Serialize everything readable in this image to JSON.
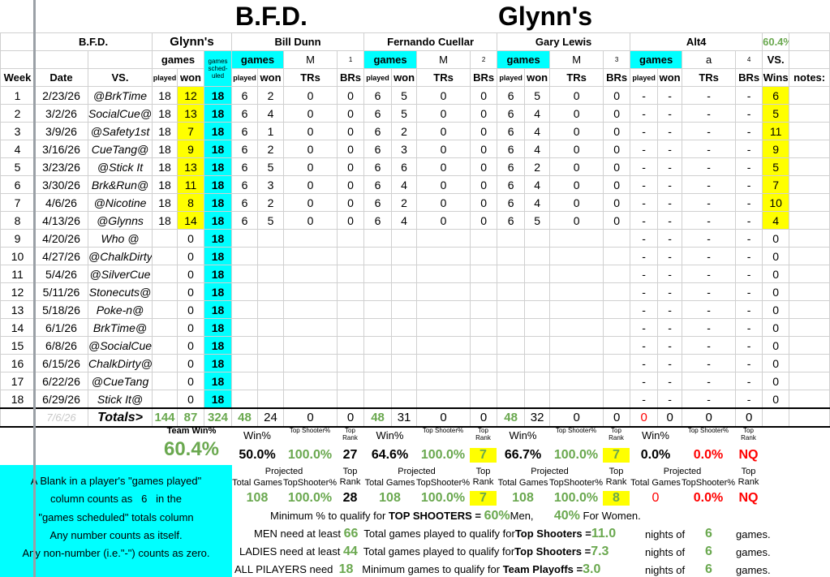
{
  "title": {
    "left": "B.F.D.",
    "right": "Glynn's"
  },
  "header1": {
    "team": "B.F.D.",
    "opponent": "Glynn's",
    "players": [
      "Bill Dunn",
      "Fernando Cuellar",
      "Gary Lewis",
      "Alt4"
    ],
    "pct": "60.4%"
  },
  "header2": {
    "games": "games",
    "sched": "games sched-uled",
    "player_cols": [
      {
        "games": "games",
        "mid": "M",
        "num": "1"
      },
      {
        "games": "games",
        "mid": "M",
        "num": "2"
      },
      {
        "games": "games",
        "mid": "M",
        "num": "3"
      },
      {
        "games": "games",
        "mid": "a",
        "num": "4"
      }
    ],
    "vs": "VS."
  },
  "header3": {
    "week": "Week",
    "date": "Date",
    "vs": "VS.",
    "played": "played",
    "won": "won",
    "pcols": [
      "played",
      "won",
      "TRs",
      "BRs"
    ],
    "wins": "Wins",
    "notes": "notes:"
  },
  "rows": [
    {
      "week": "1",
      "date": "2/23/26",
      "vs": "@BrkTime",
      "played": "18",
      "won": "12",
      "sched": "18",
      "p": [
        [
          "6",
          "2",
          "0",
          "0"
        ],
        [
          "6",
          "5",
          "0",
          "0"
        ],
        [
          "6",
          "5",
          "0",
          "0"
        ],
        [
          "-",
          "-",
          "-",
          "-"
        ]
      ],
      "wins": "6"
    },
    {
      "week": "2",
      "date": "3/2/26",
      "vs": "SocialCue@",
      "played": "18",
      "won": "13",
      "sched": "18",
      "p": [
        [
          "6",
          "4",
          "0",
          "0"
        ],
        [
          "6",
          "5",
          "0",
          "0"
        ],
        [
          "6",
          "4",
          "0",
          "0"
        ],
        [
          "-",
          "-",
          "-",
          "-"
        ]
      ],
      "wins": "5"
    },
    {
      "week": "3",
      "date": "3/9/26",
      "vs": "@Safety1st",
      "played": "18",
      "won": "7",
      "sched": "18",
      "p": [
        [
          "6",
          "1",
          "0",
          "0"
        ],
        [
          "6",
          "2",
          "0",
          "0"
        ],
        [
          "6",
          "4",
          "0",
          "0"
        ],
        [
          "-",
          "-",
          "-",
          "-"
        ]
      ],
      "wins": "11"
    },
    {
      "week": "4",
      "date": "3/16/26",
      "vs": "CueTang@",
      "played": "18",
      "won": "9",
      "sched": "18",
      "p": [
        [
          "6",
          "2",
          "0",
          "0"
        ],
        [
          "6",
          "3",
          "0",
          "0"
        ],
        [
          "6",
          "4",
          "0",
          "0"
        ],
        [
          "-",
          "-",
          "-",
          "-"
        ]
      ],
      "wins": "9"
    },
    {
      "week": "5",
      "date": "3/23/26",
      "vs": "@Stick It",
      "played": "18",
      "won": "13",
      "sched": "18",
      "p": [
        [
          "6",
          "5",
          "0",
          "0"
        ],
        [
          "6",
          "6",
          "0",
          "0"
        ],
        [
          "6",
          "2",
          "0",
          "0"
        ],
        [
          "-",
          "-",
          "-",
          "-"
        ]
      ],
      "wins": "5"
    },
    {
      "week": "6",
      "date": "3/30/26",
      "vs": "Brk&Run@",
      "played": "18",
      "won": "11",
      "sched": "18",
      "p": [
        [
          "6",
          "3",
          "0",
          "0"
        ],
        [
          "6",
          "4",
          "0",
          "0"
        ],
        [
          "6",
          "4",
          "0",
          "0"
        ],
        [
          "-",
          "-",
          "-",
          "-"
        ]
      ],
      "wins": "7"
    },
    {
      "week": "7",
      "date": "4/6/26",
      "vs": "@Nicotine",
      "played": "18",
      "won": "8",
      "sched": "18",
      "p": [
        [
          "6",
          "2",
          "0",
          "0"
        ],
        [
          "6",
          "2",
          "0",
          "0"
        ],
        [
          "6",
          "4",
          "0",
          "0"
        ],
        [
          "-",
          "-",
          "-",
          "-"
        ]
      ],
      "wins": "10"
    },
    {
      "week": "8",
      "date": "4/13/26",
      "vs": "@Glynns",
      "played": "18",
      "won": "14",
      "sched": "18",
      "p": [
        [
          "6",
          "5",
          "0",
          "0"
        ],
        [
          "6",
          "4",
          "0",
          "0"
        ],
        [
          "6",
          "5",
          "0",
          "0"
        ],
        [
          "-",
          "-",
          "-",
          "-"
        ]
      ],
      "wins": "4"
    },
    {
      "week": "9",
      "date": "4/20/26",
      "vs": "Who @",
      "played": "",
      "won": "0",
      "sched": "18",
      "p": [
        [
          "",
          "",
          "",
          ""
        ],
        [
          "",
          "",
          "",
          ""
        ],
        [
          "",
          "",
          "",
          ""
        ],
        [
          "-",
          "-",
          "-",
          "-"
        ]
      ],
      "wins": "0"
    },
    {
      "week": "10",
      "date": "4/27/26",
      "vs": "@ChalkDirty",
      "played": "",
      "won": "0",
      "sched": "18",
      "p": [
        [
          "",
          "",
          "",
          ""
        ],
        [
          "",
          "",
          "",
          ""
        ],
        [
          "",
          "",
          "",
          ""
        ],
        [
          "-",
          "-",
          "-",
          "-"
        ]
      ],
      "wins": "0"
    },
    {
      "week": "11",
      "date": "5/4/26",
      "vs": "@SilverCue",
      "played": "",
      "won": "0",
      "sched": "18",
      "p": [
        [
          "",
          "",
          "",
          ""
        ],
        [
          "",
          "",
          "",
          ""
        ],
        [
          "",
          "",
          "",
          ""
        ],
        [
          "-",
          "-",
          "-",
          "-"
        ]
      ],
      "wins": "0"
    },
    {
      "week": "12",
      "date": "5/11/26",
      "vs": "Stonecuts@",
      "played": "",
      "won": "0",
      "sched": "18",
      "p": [
        [
          "",
          "",
          "",
          ""
        ],
        [
          "",
          "",
          "",
          ""
        ],
        [
          "",
          "",
          "",
          ""
        ],
        [
          "-",
          "-",
          "-",
          "-"
        ]
      ],
      "wins": "0"
    },
    {
      "week": "13",
      "date": "5/18/26",
      "vs": "Poke-n@",
      "played": "",
      "won": "0",
      "sched": "18",
      "p": [
        [
          "",
          "",
          "",
          ""
        ],
        [
          "",
          "",
          "",
          ""
        ],
        [
          "",
          "",
          "",
          ""
        ],
        [
          "-",
          "-",
          "-",
          "-"
        ]
      ],
      "wins": "0"
    },
    {
      "week": "14",
      "date": "6/1/26",
      "vs": "BrkTime@",
      "played": "",
      "won": "0",
      "sched": "18",
      "p": [
        [
          "",
          "",
          "",
          ""
        ],
        [
          "",
          "",
          "",
          ""
        ],
        [
          "",
          "",
          "",
          ""
        ],
        [
          "-",
          "-",
          "-",
          "-"
        ]
      ],
      "wins": "0"
    },
    {
      "week": "15",
      "date": "6/8/26",
      "vs": "@SocialCue",
      "played": "",
      "won": "0",
      "sched": "18",
      "p": [
        [
          "",
          "",
          "",
          ""
        ],
        [
          "",
          "",
          "",
          ""
        ],
        [
          "",
          "",
          "",
          ""
        ],
        [
          "-",
          "-",
          "-",
          "-"
        ]
      ],
      "wins": "0"
    },
    {
      "week": "16",
      "date": "6/15/26",
      "vs": "ChalkDirty@",
      "played": "",
      "won": "0",
      "sched": "18",
      "p": [
        [
          "",
          "",
          "",
          ""
        ],
        [
          "",
          "",
          "",
          ""
        ],
        [
          "",
          "",
          "",
          ""
        ],
        [
          "-",
          "-",
          "-",
          "-"
        ]
      ],
      "wins": "0"
    },
    {
      "week": "17",
      "date": "6/22/26",
      "vs": "@CueTang",
      "played": "",
      "won": "0",
      "sched": "18",
      "p": [
        [
          "",
          "",
          "",
          ""
        ],
        [
          "",
          "",
          "",
          ""
        ],
        [
          "",
          "",
          "",
          ""
        ],
        [
          "-",
          "-",
          "-",
          "-"
        ]
      ],
      "wins": "0"
    },
    {
      "week": "18",
      "date": "6/29/26",
      "vs": "Stick It@",
      "played": "",
      "won": "0",
      "sched": "18",
      "p": [
        [
          "",
          "",
          "",
          ""
        ],
        [
          "",
          "",
          "",
          ""
        ],
        [
          "",
          "",
          "",
          ""
        ],
        [
          "-",
          "-",
          "-",
          "-"
        ]
      ],
      "wins": "0"
    }
  ],
  "totals": {
    "date": "7/6/26",
    "label": "Totals>",
    "played": "144",
    "won": "87",
    "sched": "324",
    "p": [
      [
        "48",
        "24",
        "0",
        "0"
      ],
      [
        "48",
        "31",
        "0",
        "0"
      ],
      [
        "48",
        "32",
        "0",
        "0"
      ],
      [
        "0",
        "0",
        "0",
        "0"
      ]
    ]
  },
  "summary": {
    "team_win_label": "Team Win%",
    "team_win": "60.4%",
    "win_label": "Win%",
    "ts_label": "Top Shooter%",
    "rank_label": "Top Rank",
    "players": [
      {
        "win": "50.0%",
        "ts": "100.0%",
        "rank": "27"
      },
      {
        "win": "64.6%",
        "ts": "100.0%",
        "rank": "7"
      },
      {
        "win": "66.7%",
        "ts": "100.0%",
        "rank": "7"
      },
      {
        "win": "0.0%",
        "ts": "0.0%",
        "rank": "NQ"
      }
    ]
  },
  "projected": {
    "label": "Projected",
    "tg_label": "Total Games",
    "ts_label": "TopShooter%",
    "rank_label": "Top Rank",
    "players": [
      {
        "tg": "108",
        "ts": "100.0%",
        "rank": "28"
      },
      {
        "tg": "108",
        "ts": "100.0%",
        "rank": "7"
      },
      {
        "tg": "108",
        "ts": "100.0%",
        "rank": "8"
      },
      {
        "tg": "0",
        "ts": "0.0%",
        "rank": "NQ"
      }
    ]
  },
  "notes": {
    "line1": "A Blank in a player's \"games played\"",
    "line2a": "column counts as",
    "line2b": "6",
    "line2c": "in the",
    "line3": "\"games scheduled\" totals column",
    "line4": "Any number counts as itself.",
    "line5": "Any non-number (i.e.\"-\") counts as zero."
  },
  "rules": {
    "r1_text": "Minimum % to qualify for",
    "r1_bold": "TOP SHOOTERS =",
    "r1_men_pct": "60%",
    "r1_men": "Men,",
    "r1_women_pct": "40%",
    "r1_women": "For Women.",
    "r2_label": "MEN need at least",
    "r2_num": "66",
    "r2_text": "Total games played to qualify for",
    "r2_bold": "Top Shooters =",
    "r2_val": "11.0",
    "r2_nights": "nights of",
    "r2_games_num": "6",
    "r2_games": "games.",
    "r3_label": "LADIES need at least",
    "r3_num": "44",
    "r3_text": "Total games played to qualify for",
    "r3_bold": "Top Shooters =",
    "r3_val": "7.3",
    "r3_nights": "nights of",
    "r3_games_num": "6",
    "r3_games": "games.",
    "r4_label": "ALL PILAYERS need",
    "r4_num": "18",
    "r4_text": "Minimum  games  to qualify for",
    "r4_bold": "Team Playoffs =",
    "r4_val": "3.0",
    "r4_nights": "nights of",
    "r4_games_num": "6",
    "r4_games": "games."
  }
}
